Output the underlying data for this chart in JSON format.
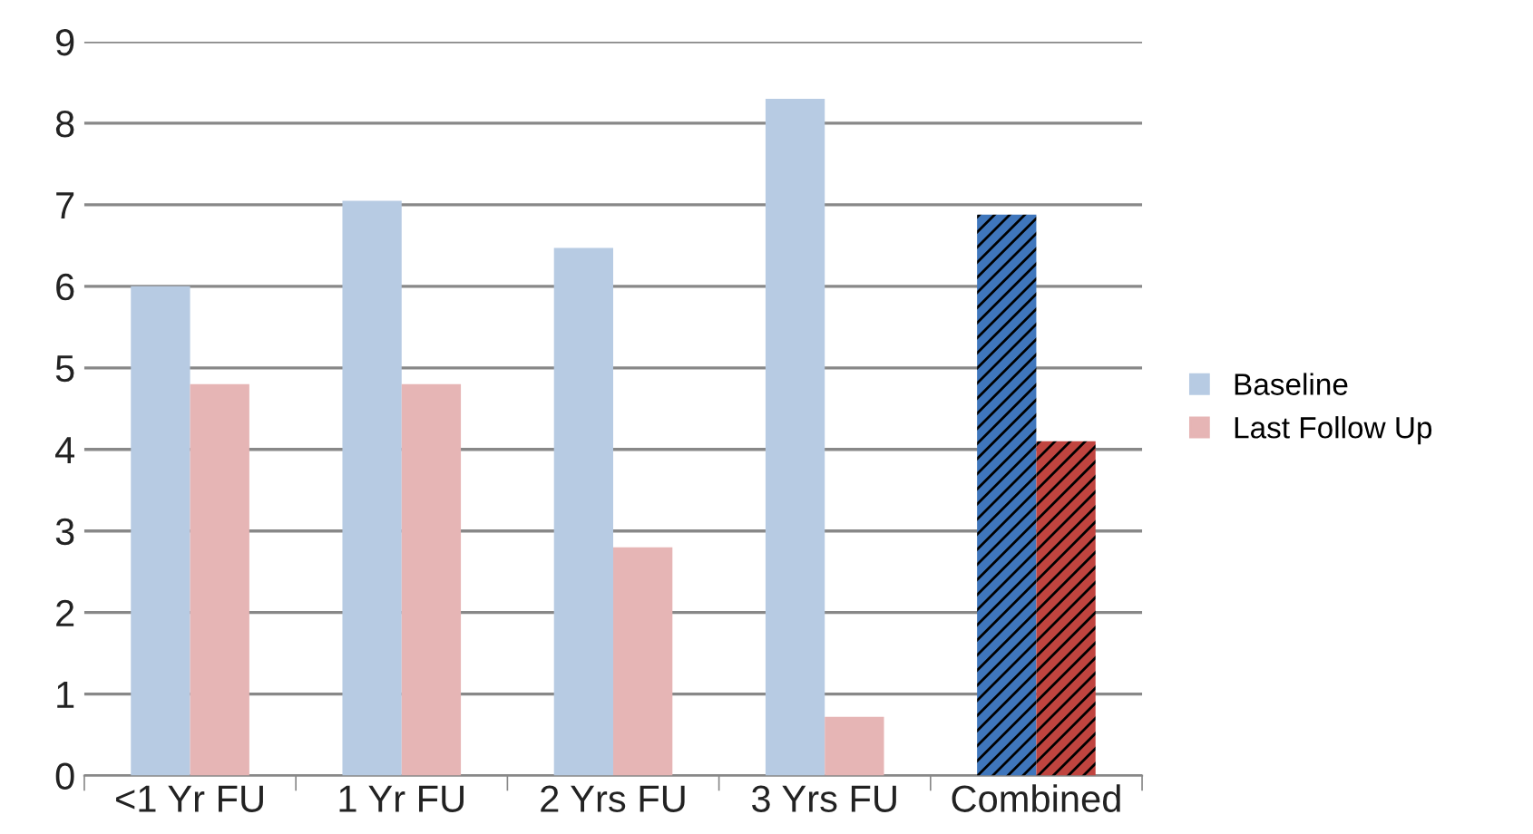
{
  "chart_data": {
    "type": "bar",
    "categories": [
      "<1 Yr FU",
      "1 Yr FU",
      "2 Yrs FU",
      "3 Yrs FU",
      "Combined"
    ],
    "series": [
      {
        "name": "Baseline",
        "color": "#b7cbe3",
        "colors": [
          "#b7cbe3",
          "#b7cbe3",
          "#b7cbe3",
          "#b7cbe3",
          "#3f76bc"
        ],
        "values": [
          6.0,
          7.05,
          6.47,
          8.3,
          6.88
        ]
      },
      {
        "name": "Last Follow Up",
        "color": "#e6b5b5",
        "colors": [
          "#e6b5b5",
          "#e6b5b5",
          "#e6b5b5",
          "#e6b5b5",
          "#c0443f"
        ],
        "values": [
          4.8,
          4.8,
          2.8,
          0.72,
          4.1
        ]
      }
    ],
    "ylim": [
      0,
      9
    ],
    "yticks": [
      0,
      1,
      2,
      3,
      4,
      5,
      6,
      7,
      8,
      9
    ],
    "grid": "y",
    "legend": "right"
  }
}
